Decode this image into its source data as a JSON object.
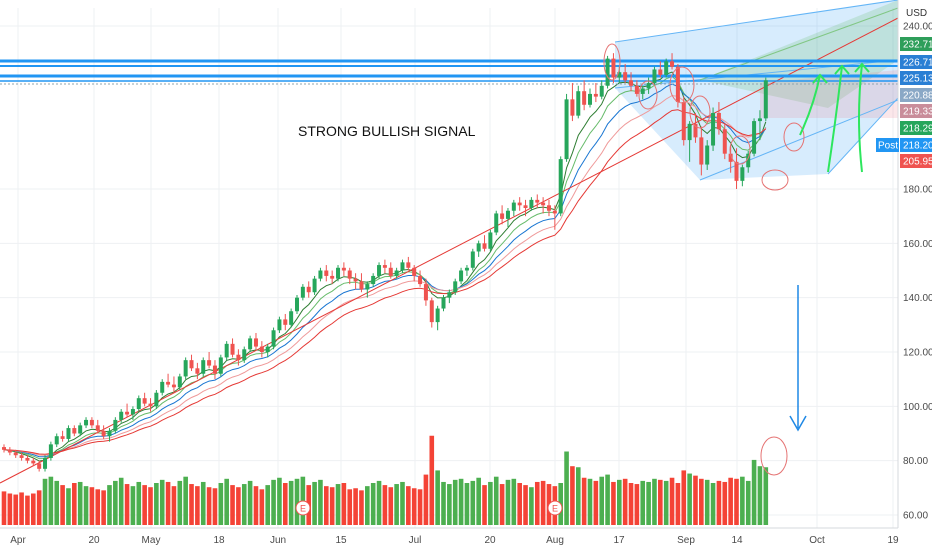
{
  "chart_data": {
    "type": "candlestick",
    "title": "",
    "currency": "USD",
    "annotation": "STRONG BULLISH SIGNAL",
    "y_range": [
      58,
      240
    ],
    "y_ticks": [
      60,
      80,
      100,
      120,
      140,
      160,
      180,
      240
    ],
    "y_tick_labels": [
      "60.00",
      "80.00",
      "100.00",
      "120.00",
      "140.00",
      "160.00",
      "180.00",
      "240.00"
    ],
    "x_tick_labels": [
      "Apr",
      "20",
      "May",
      "18",
      "Jun",
      "15",
      "Jul",
      "20",
      "Aug",
      "17",
      "Sep",
      "14",
      "Oct",
      "19"
    ],
    "price_labels": [
      {
        "text": "232.71",
        "value": 232.71,
        "color": "#2e9e5a"
      },
      {
        "text": "226.71",
        "value": 226.71,
        "color": "#2a7fd4"
      },
      {
        "text": "225.13",
        "value": 225.13,
        "color": "#2a7fd4"
      },
      {
        "text": "220.88",
        "value": 220.88,
        "color": "#8aa8c6"
      },
      {
        "text": "219.33",
        "value": 219.33,
        "color": "#c98d9a"
      },
      {
        "text": "218.29",
        "value": 218.29,
        "color": "#26a65b"
      },
      {
        "text": "218.20",
        "value": 218.2,
        "color": "#2196f3",
        "tag": "Post"
      },
      {
        "text": "205.95",
        "value": 205.95,
        "color": "#ef5350"
      }
    ],
    "horizontal_lines": [
      226.71,
      225.13,
      220.88
    ],
    "colors": {
      "up": "#26a65b",
      "down": "#ef5350",
      "line": "#2196f3",
      "volume_up": "#4caf50",
      "volume_down": "#f44336"
    },
    "ohlc": [
      [
        85,
        86,
        83,
        84
      ],
      [
        84,
        85,
        82,
        83
      ],
      [
        83,
        84,
        81,
        82
      ],
      [
        82,
        83,
        80,
        81
      ],
      [
        81,
        82,
        79,
        80
      ],
      [
        80,
        81,
        78,
        79
      ],
      [
        79,
        80,
        76,
        77
      ],
      [
        77,
        82,
        76,
        81
      ],
      [
        81,
        87,
        80,
        86
      ],
      [
        86,
        90,
        85,
        89
      ],
      [
        89,
        91,
        87,
        88
      ],
      [
        88,
        93,
        87,
        92
      ],
      [
        92,
        93,
        89,
        90
      ],
      [
        90,
        94,
        89,
        93
      ],
      [
        93,
        96,
        92,
        95
      ],
      [
        95,
        96,
        92,
        93
      ],
      [
        93,
        95,
        90,
        91
      ],
      [
        91,
        93,
        88,
        89
      ],
      [
        89,
        92,
        87,
        91
      ],
      [
        91,
        96,
        90,
        95
      ],
      [
        95,
        99,
        94,
        98
      ],
      [
        98,
        101,
        96,
        97
      ],
      [
        97,
        100,
        95,
        99
      ],
      [
        99,
        104,
        98,
        103
      ],
      [
        103,
        105,
        100,
        101
      ],
      [
        101,
        103,
        98,
        100
      ],
      [
        100,
        106,
        99,
        105
      ],
      [
        105,
        110,
        104,
        109
      ],
      [
        109,
        112,
        107,
        108
      ],
      [
        108,
        111,
        105,
        107
      ],
      [
        107,
        112,
        106,
        111
      ],
      [
        111,
        118,
        110,
        117
      ],
      [
        117,
        119,
        113,
        114
      ],
      [
        114,
        116,
        110,
        112
      ],
      [
        112,
        118,
        111,
        117
      ],
      [
        117,
        120,
        114,
        115
      ],
      [
        115,
        117,
        110,
        112
      ],
      [
        112,
        119,
        111,
        118
      ],
      [
        118,
        124,
        117,
        123
      ],
      [
        123,
        125,
        118,
        119
      ],
      [
        119,
        121,
        115,
        117
      ],
      [
        117,
        122,
        116,
        121
      ],
      [
        121,
        126,
        120,
        125
      ],
      [
        125,
        127,
        121,
        122
      ],
      [
        122,
        124,
        118,
        120
      ],
      [
        120,
        123,
        118,
        122
      ],
      [
        122,
        129,
        121,
        128
      ],
      [
        128,
        133,
        127,
        132
      ],
      [
        132,
        134,
        128,
        130
      ],
      [
        130,
        136,
        129,
        135
      ],
      [
        135,
        141,
        134,
        140
      ],
      [
        140,
        145,
        139,
        144
      ],
      [
        144,
        146,
        140,
        142
      ],
      [
        142,
        148,
        141,
        147
      ],
      [
        147,
        151,
        146,
        150
      ],
      [
        150,
        152,
        146,
        148
      ],
      [
        148,
        150,
        145,
        147
      ],
      [
        147,
        152,
        146,
        151
      ],
      [
        151,
        153,
        148,
        150
      ],
      [
        150,
        151,
        145,
        147
      ],
      [
        147,
        149,
        143,
        146
      ],
      [
        146,
        149,
        142,
        143
      ],
      [
        143,
        146,
        140,
        145
      ],
      [
        145,
        149,
        144,
        148
      ],
      [
        148,
        153,
        147,
        152
      ],
      [
        152,
        154,
        149,
        151
      ],
      [
        151,
        153,
        147,
        148
      ],
      [
        148,
        151,
        147,
        150
      ],
      [
        150,
        154,
        149,
        153
      ],
      [
        153,
        155,
        150,
        151
      ],
      [
        151,
        152,
        146,
        148
      ],
      [
        148,
        150,
        144,
        145
      ],
      [
        145,
        147,
        137,
        139
      ],
      [
        139,
        140,
        129,
        131
      ],
      [
        131,
        137,
        128,
        136
      ],
      [
        136,
        141,
        135,
        140
      ],
      [
        140,
        143,
        138,
        142
      ],
      [
        142,
        147,
        141,
        146
      ],
      [
        146,
        151,
        145,
        150
      ],
      [
        150,
        152,
        148,
        151
      ],
      [
        151,
        158,
        150,
        157
      ],
      [
        157,
        161,
        155,
        160
      ],
      [
        160,
        163,
        157,
        158
      ],
      [
        158,
        165,
        157,
        164
      ],
      [
        164,
        172,
        163,
        171
      ],
      [
        171,
        174,
        167,
        169
      ],
      [
        169,
        173,
        166,
        172
      ],
      [
        172,
        176,
        170,
        175
      ],
      [
        175,
        177,
        172,
        174
      ],
      [
        174,
        176,
        170,
        173
      ],
      [
        173,
        177,
        172,
        176
      ],
      [
        176,
        178,
        173,
        175
      ],
      [
        175,
        177,
        171,
        174
      ],
      [
        174,
        176,
        170,
        172
      ],
      [
        172,
        174,
        165,
        171
      ],
      [
        171,
        192,
        170,
        191
      ],
      [
        191,
        215,
        190,
        213
      ],
      [
        213,
        219,
        205,
        207
      ],
      [
        207,
        218,
        206,
        216
      ],
      [
        216,
        220,
        209,
        211
      ],
      [
        211,
        217,
        210,
        215
      ],
      [
        215,
        219,
        212,
        214
      ],
      [
        214,
        220,
        213,
        218
      ],
      [
        218,
        229,
        217,
        228
      ],
      [
        228,
        230,
        219,
        221
      ],
      [
        221,
        225,
        219,
        223
      ],
      [
        223,
        226,
        219,
        220
      ],
      [
        220,
        223,
        216,
        218
      ],
      [
        218,
        220,
        214,
        215
      ],
      [
        215,
        218,
        213,
        217
      ],
      [
        217,
        221,
        215,
        219
      ],
      [
        219,
        225,
        218,
        224
      ],
      [
        224,
        227,
        221,
        222
      ],
      [
        222,
        228,
        221,
        227
      ],
      [
        227,
        230,
        224,
        225
      ],
      [
        225,
        226,
        210,
        212
      ],
      [
        212,
        214,
        196,
        198
      ],
      [
        198,
        205,
        190,
        204
      ],
      [
        204,
        208,
        197,
        199
      ],
      [
        199,
        203,
        185,
        189
      ],
      [
        189,
        198,
        187,
        196
      ],
      [
        196,
        210,
        194,
        208
      ],
      [
        208,
        212,
        200,
        202
      ],
      [
        202,
        204,
        191,
        193
      ],
      [
        193,
        196,
        186,
        190
      ],
      [
        190,
        195,
        180,
        183
      ],
      [
        183,
        189,
        181,
        188
      ],
      [
        188,
        194,
        186,
        193
      ],
      [
        193,
        206,
        192,
        205
      ],
      [
        205,
        209,
        198,
        206
      ],
      [
        206,
        221,
        205,
        220
      ]
    ],
    "volume": [
      32,
      30,
      29,
      31,
      28,
      30,
      33,
      44,
      46,
      42,
      38,
      35,
      40,
      41,
      37,
      36,
      34,
      33,
      38,
      42,
      45,
      39,
      37,
      41,
      38,
      36,
      40,
      43,
      41,
      37,
      42,
      46,
      39,
      37,
      41,
      36,
      35,
      40,
      44,
      38,
      36,
      39,
      42,
      37,
      34,
      38,
      43,
      45,
      40,
      42,
      44,
      46,
      38,
      41,
      43,
      37,
      36,
      39,
      40,
      34,
      35,
      33,
      37,
      40,
      42,
      38,
      36,
      39,
      41,
      37,
      35,
      34,
      48,
      85,
      52,
      41,
      39,
      43,
      44,
      40,
      42,
      45,
      38,
      41,
      46,
      39,
      43,
      44,
      40,
      38,
      36,
      41,
      42,
      39,
      37,
      40,
      70,
      56,
      55,
      45,
      44,
      42,
      46,
      48,
      41,
      43,
      44,
      40,
      39,
      42,
      41,
      44,
      43,
      42,
      45,
      40,
      52,
      49,
      47,
      44,
      43,
      40,
      42,
      41,
      45,
      44,
      46,
      42,
      62,
      56,
      55
    ]
  }
}
